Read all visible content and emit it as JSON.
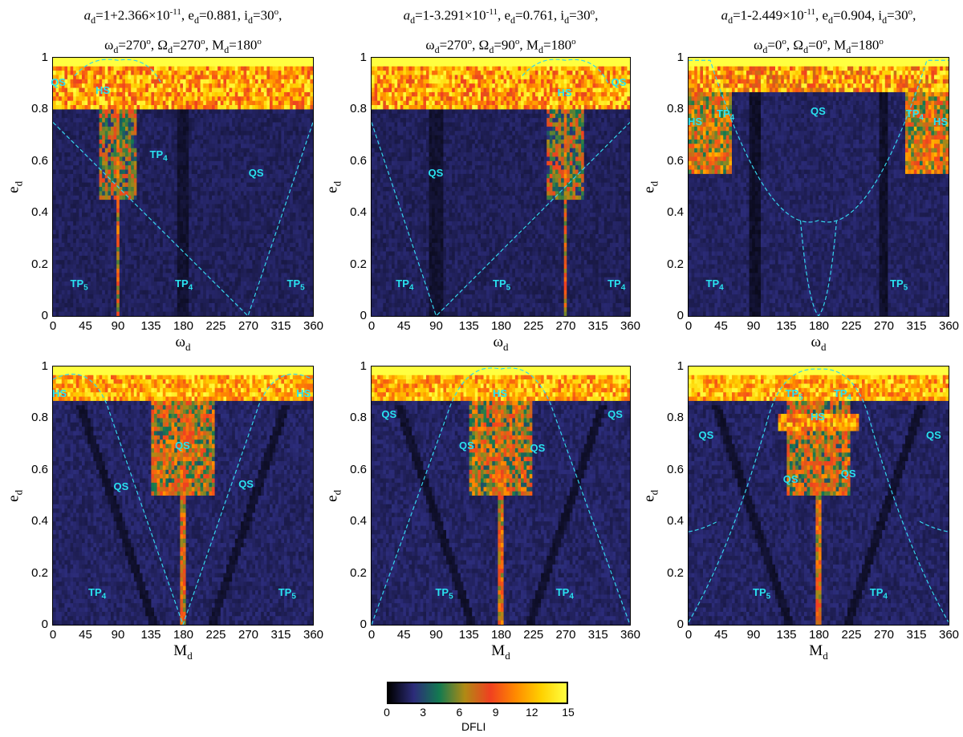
{
  "figure": {
    "colorbar": {
      "label": "DFLI",
      "ticks": [
        "0",
        "3",
        "6",
        "9",
        "12",
        "15"
      ],
      "colors": [
        "#000000",
        "#2c2c7a",
        "#137a50",
        "#b08a14",
        "#f04020",
        "#ff8a00",
        "#ffd000",
        "#ffff40"
      ]
    }
  },
  "chart_data": [
    {
      "type": "heatmap",
      "panel": "top-left",
      "title_line1": "a_d=1+2.366×10^-11, e_d=0.881, i_d=30°,",
      "title_line2": "ω_d=270°, Ω_d=270°, M_d=180°",
      "xlabel": "ωd",
      "ylabel": "ed",
      "xlim": [
        0,
        360
      ],
      "ylim": [
        0,
        1
      ],
      "xticks": [
        "0",
        "45",
        "90",
        "135",
        "180",
        "225",
        "270",
        "315",
        "360"
      ],
      "yticks": [
        "0",
        "0.2",
        "0.4",
        "0.6",
        "0.8",
        "1"
      ],
      "colorbar_label": "DFLI",
      "value_range": [
        0,
        15
      ],
      "regions": [
        {
          "label": "QS",
          "x": 8,
          "y": 0.9
        },
        {
          "label": "HS",
          "x": 70,
          "y": 0.87
        },
        {
          "label": "TP4",
          "x": 145,
          "y": 0.62
        },
        {
          "label": "QS",
          "x": 282,
          "y": 0.55
        },
        {
          "label": "TP5",
          "x": 35,
          "y": 0.12
        },
        {
          "label": "TP4",
          "x": 180,
          "y": 0.12
        },
        {
          "label": "TP5",
          "x": 335,
          "y": 0.12
        }
      ]
    },
    {
      "type": "heatmap",
      "panel": "top-middle",
      "title_line1": "a_d=1-3.291×10^-11, e_d=0.761, i_d=30°,",
      "title_line2": "ω_d=270°, Ω_d=90°, M_d=180°",
      "xlabel": "ωd",
      "ylabel": "ed",
      "xlim": [
        0,
        360
      ],
      "ylim": [
        0,
        1
      ],
      "xticks": [
        "0",
        "45",
        "90",
        "135",
        "180",
        "225",
        "270",
        "315",
        "360"
      ],
      "yticks": [
        "0",
        "0.2",
        "0.4",
        "0.6",
        "0.8",
        "1"
      ],
      "colorbar_label": "DFLI",
      "value_range": [
        0,
        15
      ],
      "regions": [
        {
          "label": "QS",
          "x": 345,
          "y": 0.9
        },
        {
          "label": "HS",
          "x": 270,
          "y": 0.86
        },
        {
          "label": "QS",
          "x": 90,
          "y": 0.55
        },
        {
          "label": "TP4",
          "x": 45,
          "y": 0.12
        },
        {
          "label": "TP5",
          "x": 180,
          "y": 0.12
        },
        {
          "label": "TP4",
          "x": 340,
          "y": 0.12
        }
      ]
    },
    {
      "type": "heatmap",
      "panel": "top-right",
      "title_line1": "a_d=1-2.449×10^-11, e_d=0.904, i_d=30°,",
      "title_line2": "ω_d=0°, Ω_d=0°, M_d=180°",
      "xlabel": "ωd",
      "ylabel": "ed",
      "xlim": [
        0,
        360
      ],
      "ylim": [
        0,
        1
      ],
      "xticks": [
        "0",
        "45",
        "90",
        "135",
        "180",
        "225",
        "270",
        "315",
        "360"
      ],
      "yticks": [
        "0",
        "0.2",
        "0.4",
        "0.6",
        "0.8",
        "1"
      ],
      "colorbar_label": "DFLI",
      "value_range": [
        0,
        15
      ],
      "regions": [
        {
          "label": "TP4",
          "x": 50,
          "y": 0.78
        },
        {
          "label": "HS",
          "x": 10,
          "y": 0.75
        },
        {
          "label": "QS",
          "x": 180,
          "y": 0.79
        },
        {
          "label": "TP4",
          "x": 312,
          "y": 0.78
        },
        {
          "label": "HS",
          "x": 350,
          "y": 0.75
        },
        {
          "label": "TP4",
          "x": 35,
          "y": 0.12
        },
        {
          "label": "TP5",
          "x": 290,
          "y": 0.12
        }
      ]
    },
    {
      "type": "heatmap",
      "panel": "bottom-left",
      "title_line1": "",
      "title_line2": "",
      "xlabel": "Md",
      "ylabel": "ed",
      "xlim": [
        0,
        360
      ],
      "ylim": [
        0,
        1
      ],
      "xticks": [
        "0",
        "45",
        "90",
        "135",
        "180",
        "225",
        "270",
        "315",
        "360"
      ],
      "yticks": [
        "0",
        "0.2",
        "0.4",
        "0.6",
        "0.8",
        "1"
      ],
      "colorbar_label": "DFLI",
      "value_range": [
        0,
        15
      ],
      "regions": [
        {
          "label": "HS",
          "x": 10,
          "y": 0.89
        },
        {
          "label": "HS",
          "x": 348,
          "y": 0.89
        },
        {
          "label": "QS",
          "x": 180,
          "y": 0.69
        },
        {
          "label": "QS",
          "x": 95,
          "y": 0.53
        },
        {
          "label": "QS",
          "x": 268,
          "y": 0.54
        },
        {
          "label": "TP4",
          "x": 60,
          "y": 0.12
        },
        {
          "label": "TP5",
          "x": 323,
          "y": 0.12
        }
      ]
    },
    {
      "type": "heatmap",
      "panel": "bottom-middle",
      "title_line1": "",
      "title_line2": "",
      "xlabel": "Md",
      "ylabel": "ed",
      "xlim": [
        0,
        360
      ],
      "ylim": [
        0,
        1
      ],
      "xticks": [
        "0",
        "45",
        "90",
        "135",
        "180",
        "225",
        "270",
        "315",
        "360"
      ],
      "yticks": [
        "0",
        "0.2",
        "0.4",
        "0.6",
        "0.8",
        "1"
      ],
      "colorbar_label": "DFLI",
      "value_range": [
        0,
        15
      ],
      "regions": [
        {
          "label": "HS",
          "x": 180,
          "y": 0.89
        },
        {
          "label": "QS",
          "x": 25,
          "y": 0.81
        },
        {
          "label": "QS",
          "x": 340,
          "y": 0.81
        },
        {
          "label": "QS",
          "x": 133,
          "y": 0.69
        },
        {
          "label": "QS",
          "x": 232,
          "y": 0.68
        },
        {
          "label": "TP5",
          "x": 100,
          "y": 0.12
        },
        {
          "label": "TP4",
          "x": 268,
          "y": 0.12
        }
      ]
    },
    {
      "type": "heatmap",
      "panel": "bottom-right",
      "title_line1": "",
      "title_line2": "",
      "xlabel": "Md",
      "ylabel": "ed",
      "xlim": [
        0,
        360
      ],
      "ylim": [
        0,
        1
      ],
      "xticks": [
        "0",
        "45",
        "90",
        "135",
        "180",
        "225",
        "270",
        "315",
        "360"
      ],
      "yticks": [
        "0",
        "0.2",
        "0.4",
        "0.6",
        "0.8",
        "1"
      ],
      "colorbar_label": "DFLI",
      "value_range": [
        0,
        15
      ],
      "regions": [
        {
          "label": "TP5",
          "x": 145,
          "y": 0.89
        },
        {
          "label": "TP4",
          "x": 212,
          "y": 0.89
        },
        {
          "label": "HS",
          "x": 180,
          "y": 0.8
        },
        {
          "label": "QS",
          "x": 25,
          "y": 0.73
        },
        {
          "label": "QS",
          "x": 340,
          "y": 0.73
        },
        {
          "label": "QS",
          "x": 142,
          "y": 0.56
        },
        {
          "label": "QS",
          "x": 222,
          "y": 0.58
        },
        {
          "label": "TP5",
          "x": 100,
          "y": 0.12
        },
        {
          "label": "TP4",
          "x": 262,
          "y": 0.12
        }
      ]
    }
  ]
}
